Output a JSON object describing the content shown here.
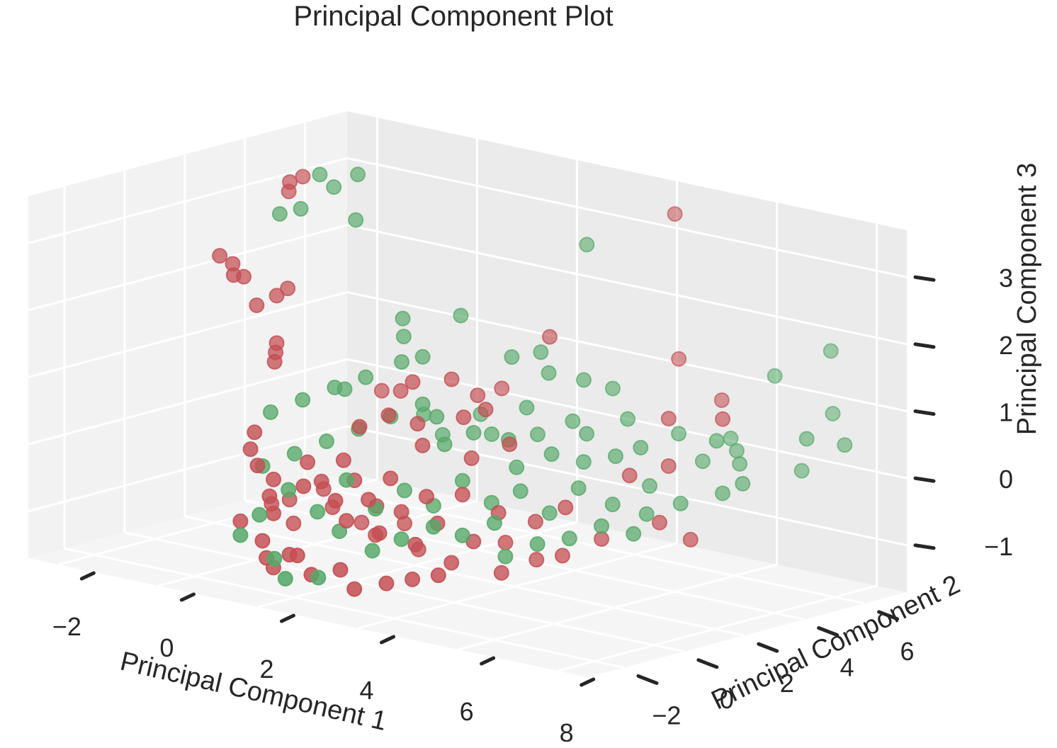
{
  "chart_data": {
    "type": "scatter",
    "projection": "3d",
    "title": "Principal Component Plot",
    "xlabel": "Principal Component 1",
    "ylabel": "Principal Component 2",
    "zlabel": "Principal Component 3",
    "xlim": [
      -2.6,
      8.6
    ],
    "ylim": [
      -3.2,
      7.4
    ],
    "zlim": [
      -1.7,
      3.7
    ],
    "xticks": [
      -2,
      0,
      2,
      4,
      6,
      8
    ],
    "yticks": [
      -2,
      0,
      2,
      4,
      6
    ],
    "zticks": [
      -1,
      0,
      1,
      2,
      3
    ],
    "grid": true,
    "legend": "none",
    "colors": {
      "class_a": "#c44e52",
      "class_b": "#55a868",
      "pane_back": "#ebebeb",
      "pane_side": "#f2f2f2",
      "pane_floor": "#f5f5f5"
    },
    "series": [
      {
        "color": "#c44e52",
        "points": [
          [
            -1.4,
            3.5,
            3.3
          ],
          [
            -1.2,
            3.6,
            3.4
          ],
          [
            -1.3,
            3.3,
            3.2
          ],
          [
            -1.9,
            2.0,
            2.3
          ],
          [
            -1.7,
            2.1,
            2.2
          ],
          [
            -1.5,
            1.8,
            2.1
          ],
          [
            -1.6,
            2.3,
            2.0
          ],
          [
            -1.0,
            2.4,
            1.8
          ],
          [
            -0.9,
            2.6,
            1.9
          ],
          [
            -1.1,
            1.9,
            1.7
          ],
          [
            -0.6,
            1.7,
            1.1
          ],
          [
            -0.5,
            1.5,
            1.0
          ],
          [
            -0.7,
            1.9,
            1.2
          ],
          [
            4.5,
            6.5,
            3.4
          ],
          [
            3.2,
            4.5,
            1.6
          ],
          [
            5.0,
            5.8,
            1.4
          ],
          [
            5.8,
            5.9,
            0.9
          ],
          [
            2.3,
            4.4,
            0.7
          ],
          [
            0.5,
            3.4,
            0.5
          ],
          [
            1.0,
            3.2,
            0.6
          ],
          [
            -0.3,
            0.5,
            0.1
          ],
          [
            -0.2,
            0.2,
            -0.1
          ],
          [
            0.0,
            0.1,
            -0.3
          ],
          [
            0.2,
            0.3,
            -0.5
          ],
          [
            0.3,
            0.0,
            -0.7
          ],
          [
            0.5,
            -0.2,
            -0.9
          ],
          [
            -0.1,
            -0.3,
            -1.1
          ],
          [
            0.4,
            -0.4,
            -1.3
          ],
          [
            0.6,
            -0.6,
            -1.5
          ],
          [
            0.8,
            -0.7,
            -1.6
          ],
          [
            1.0,
            -0.5,
            -1.4
          ],
          [
            0.7,
            0.6,
            -0.2
          ],
          [
            1.1,
            0.4,
            -0.4
          ],
          [
            1.3,
            0.8,
            -0.1
          ],
          [
            1.5,
            0.2,
            -0.6
          ],
          [
            1.7,
            0.5,
            -0.3
          ],
          [
            1.9,
            -0.1,
            -0.8
          ],
          [
            2.1,
            0.3,
            -0.5
          ],
          [
            2.3,
            0.7,
            -0.2
          ],
          [
            2.5,
            0.0,
            -0.9
          ],
          [
            2.7,
            0.4,
            -0.6
          ],
          [
            2.9,
            0.9,
            -0.4
          ],
          [
            3.1,
            0.2,
            -1.0
          ],
          [
            3.3,
            0.6,
            -0.7
          ],
          [
            3.5,
            1.1,
            -0.3
          ],
          [
            3.7,
            0.4,
            -1.2
          ],
          [
            3.9,
            0.8,
            -0.9
          ],
          [
            4.1,
            1.3,
            -0.5
          ],
          [
            1.2,
            1.5,
            0.3
          ],
          [
            1.6,
            1.8,
            0.5
          ],
          [
            2.0,
            2.1,
            0.4
          ],
          [
            2.4,
            1.6,
            0.2
          ],
          [
            2.8,
            2.3,
            0.6
          ],
          [
            3.2,
            1.9,
            0.1
          ],
          [
            3.6,
            2.5,
            0.3
          ],
          [
            1.4,
            -0.9,
            -1.3
          ],
          [
            1.8,
            -1.1,
            -1.5
          ],
          [
            2.2,
            -0.8,
            -1.4
          ],
          [
            2.6,
            -1.0,
            -1.6
          ],
          [
            3.0,
            -0.6,
            -1.5
          ],
          [
            3.4,
            -0.4,
            -1.4
          ],
          [
            3.8,
            -0.2,
            -1.3
          ],
          [
            4.3,
            1.2,
            -0.9
          ],
          [
            4.6,
            1.7,
            -0.6
          ],
          [
            4.9,
            2.2,
            -0.4
          ],
          [
            5.2,
            1.6,
            -1.0
          ],
          [
            5.5,
            2.4,
            -0.8
          ],
          [
            6.3,
            3.0,
            -0.5
          ],
          [
            6.8,
            3.2,
            -0.7
          ],
          [
            6.0,
            3.8,
            0.2
          ],
          [
            5.4,
            3.5,
            0.0
          ],
          [
            0.9,
            1.1,
            -0.9
          ],
          [
            1.3,
            1.4,
            -1.1
          ],
          [
            1.7,
            1.2,
            -1.2
          ],
          [
            2.1,
            1.5,
            -1.0
          ],
          [
            2.5,
            1.3,
            -1.3
          ],
          [
            0.3,
            0.8,
            -1.2
          ],
          [
            0.1,
            1.0,
            -0.9
          ],
          [
            -0.2,
            0.9,
            -1.0
          ],
          [
            0.6,
            1.3,
            -0.7
          ],
          [
            4.4,
            0.9,
            -1.3
          ],
          [
            4.8,
            1.4,
            -1.1
          ],
          [
            1.6,
            2.6,
            0.9
          ],
          [
            2.2,
            2.9,
            1.0
          ],
          [
            2.6,
            3.1,
            0.8
          ],
          [
            3.0,
            2.7,
            0.7
          ],
          [
            6.6,
            4.6,
            0.9
          ],
          [
            5.7,
            4.3,
            0.8
          ],
          [
            1.1,
            -0.2,
            -0.4
          ],
          [
            1.9,
            0.9,
            -0.7
          ]
        ]
      },
      {
        "color": "#55a868",
        "points": [
          [
            -1.1,
            4.0,
            3.4
          ],
          [
            -0.7,
            3.8,
            3.3
          ],
          [
            -0.4,
            4.1,
            3.5
          ],
          [
            -1.3,
            3.0,
            2.9
          ],
          [
            -1.0,
            3.2,
            3.0
          ],
          [
            -0.2,
            3.7,
            2.9
          ],
          [
            3.4,
            5.4,
            2.9
          ],
          [
            0.8,
            3.6,
            1.6
          ],
          [
            1.0,
            3.3,
            1.4
          ],
          [
            1.6,
            4.2,
            1.7
          ],
          [
            1.2,
            2.9,
            1.1
          ],
          [
            1.5,
            3.1,
            1.2
          ],
          [
            0.3,
            2.5,
            0.6
          ],
          [
            0.6,
            2.7,
            0.8
          ],
          [
            7.2,
            7.2,
            1.7
          ],
          [
            6.5,
            6.5,
            1.3
          ],
          [
            7.8,
            5.4,
            0.7
          ],
          [
            8.2,
            6.0,
            0.6
          ],
          [
            7.6,
            6.6,
            0.9
          ],
          [
            7.0,
            4.6,
            0.0
          ],
          [
            6.7,
            5.0,
            0.2
          ],
          [
            5.6,
            4.8,
            0.5
          ],
          [
            5.2,
            4.2,
            0.3
          ],
          [
            4.7,
            4.6,
            0.6
          ],
          [
            4.3,
            3.9,
            0.4
          ],
          [
            3.9,
            4.1,
            0.5
          ],
          [
            3.5,
            3.6,
            0.3
          ],
          [
            3.1,
            3.9,
            0.6
          ],
          [
            2.7,
            3.4,
            0.2
          ],
          [
            2.3,
            3.7,
            0.4
          ],
          [
            1.9,
            3.1,
            0.1
          ],
          [
            1.4,
            3.3,
            0.3
          ],
          [
            6.1,
            5.7,
            0.4
          ],
          [
            5.9,
            5.1,
            0.1
          ],
          [
            6.4,
            5.4,
            0.3
          ],
          [
            7.4,
            5.9,
            0.1
          ],
          [
            6.9,
            4.1,
            -0.1
          ],
          [
            6.3,
            3.7,
            -0.3
          ],
          [
            5.8,
            3.4,
            -0.5
          ],
          [
            5.3,
            3.1,
            -0.4
          ],
          [
            4.8,
            2.8,
            -0.2
          ],
          [
            4.4,
            2.5,
            -0.6
          ],
          [
            4.0,
            2.2,
            -0.3
          ],
          [
            3.6,
            1.9,
            -0.5
          ],
          [
            3.2,
            1.6,
            -0.2
          ],
          [
            2.8,
            1.3,
            -0.6
          ],
          [
            2.4,
            1.0,
            -0.4
          ],
          [
            2.0,
            0.7,
            -0.7
          ],
          [
            1.6,
            0.4,
            -0.3
          ],
          [
            1.2,
            0.1,
            -0.8
          ],
          [
            0.8,
            -0.2,
            -0.5
          ],
          [
            0.4,
            -0.5,
            -0.9
          ],
          [
            0.2,
            -0.8,
            -1.2
          ],
          [
            1.0,
            -1.0,
            -1.4
          ],
          [
            1.4,
            -1.3,
            -1.6
          ],
          [
            2.0,
            -1.2,
            -1.5
          ],
          [
            2.6,
            -0.4,
            -1.1
          ],
          [
            3.0,
            -0.1,
            -0.9
          ],
          [
            3.4,
            0.3,
            -0.7
          ],
          [
            3.8,
            0.6,
            -0.8
          ],
          [
            4.2,
            1.0,
            -0.6
          ],
          [
            4.6,
            0.7,
            -1.0
          ],
          [
            5.0,
            1.1,
            -0.8
          ],
          [
            5.4,
            1.5,
            -0.7
          ],
          [
            5.8,
            1.9,
            -0.5
          ],
          [
            6.2,
            2.3,
            -0.6
          ],
          [
            2.2,
            2.4,
            0.5
          ],
          [
            2.6,
            2.0,
            0.2
          ],
          [
            3.0,
            2.3,
            0.4
          ],
          [
            3.4,
            2.8,
            0.3
          ],
          [
            3.8,
            2.4,
            0.0
          ],
          [
            4.2,
            2.9,
            0.2
          ],
          [
            4.6,
            3.3,
            0.1
          ],
          [
            5.0,
            3.7,
            0.2
          ],
          [
            1.8,
            2.6,
            0.6
          ],
          [
            1.4,
            2.2,
            0.4
          ],
          [
            1.0,
            1.8,
            0.2
          ],
          [
            0.6,
            1.4,
            0.0
          ],
          [
            0.2,
            1.0,
            -0.2
          ],
          [
            -0.2,
            0.6,
            -0.4
          ],
          [
            -0.4,
            1.2,
            0.3
          ],
          [
            0.0,
            1.6,
            0.5
          ],
          [
            0.4,
            2.0,
            0.7
          ],
          [
            3.3,
            4.3,
            1.1
          ],
          [
            3.7,
            4.8,
            1.0
          ],
          [
            4.1,
            5.1,
            0.9
          ],
          [
            2.9,
            4.7,
            1.3
          ],
          [
            2.5,
            4.4,
            1.2
          ],
          [
            5.5,
            4.0,
            -0.2
          ],
          [
            6.6,
            4.4,
            0.6
          ],
          [
            1.7,
            0.0,
            -1.0
          ]
        ]
      }
    ]
  }
}
